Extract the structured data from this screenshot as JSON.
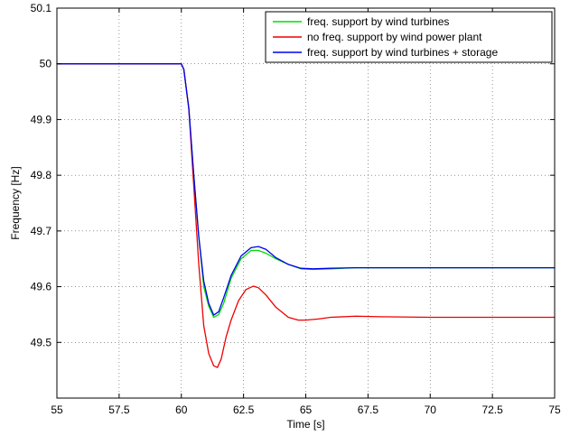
{
  "chart_data": {
    "type": "line",
    "title": "",
    "xlabel": "Time [s]",
    "ylabel": "Frequency [Hz]",
    "xlim": [
      55,
      75
    ],
    "ylim": [
      49.4,
      50.1
    ],
    "grid": true,
    "legend_position": "top-right",
    "x_ticks": [
      55,
      57.5,
      60,
      62.5,
      65,
      67.5,
      70,
      72.5,
      75
    ],
    "x_tick_labels": [
      "55",
      "57.5",
      "60",
      "62.5",
      "65",
      "67.5",
      "70",
      "72.5",
      "75"
    ],
    "y_ticks": [
      49.5,
      49.6,
      49.7,
      49.8,
      49.9,
      50,
      50.1
    ],
    "y_tick_labels": [
      "49.5",
      "49.6",
      "49.7",
      "49.8",
      "49.9",
      "50",
      "50.1"
    ],
    "series": [
      {
        "name": "freq. support by wind turbines",
        "color": "#00dd00",
        "x": [
          55,
          60,
          60.1,
          60.3,
          60.5,
          60.7,
          60.9,
          61.1,
          61.3,
          61.5,
          61.7,
          62.0,
          62.4,
          62.8,
          63.1,
          63.4,
          63.8,
          64.3,
          64.8,
          65.3,
          66,
          67,
          68,
          70,
          72.5,
          75
        ],
        "y": [
          50.0,
          50.0,
          49.99,
          49.92,
          49.8,
          49.69,
          49.6,
          49.565,
          49.545,
          49.55,
          49.57,
          49.615,
          49.65,
          49.665,
          49.665,
          49.66,
          49.65,
          49.64,
          49.632,
          49.631,
          49.632,
          49.634,
          49.634,
          49.634,
          49.634,
          49.634
        ]
      },
      {
        "name": "no freq. support by wind power plant",
        "color": "#ee0000",
        "x": [
          55,
          60,
          60.1,
          60.3,
          60.5,
          60.7,
          60.9,
          61.1,
          61.3,
          61.45,
          61.6,
          61.8,
          62.0,
          62.3,
          62.6,
          62.9,
          63.1,
          63.4,
          63.8,
          64.3,
          64.7,
          65.0,
          65.5,
          66,
          67,
          68,
          70,
          72.5,
          75
        ],
        "y": [
          50.0,
          50.0,
          49.99,
          49.92,
          49.78,
          49.64,
          49.53,
          49.48,
          49.458,
          49.455,
          49.47,
          49.51,
          49.54,
          49.575,
          49.595,
          49.601,
          49.598,
          49.585,
          49.563,
          49.545,
          49.54,
          49.54,
          49.542,
          49.545,
          49.547,
          49.546,
          49.545,
          49.545,
          49.545
        ]
      },
      {
        "name": "freq. support by wind turbines + storage",
        "color": "#0000ee",
        "x": [
          55,
          60,
          60.1,
          60.3,
          60.5,
          60.7,
          60.9,
          61.1,
          61.3,
          61.5,
          61.7,
          62.0,
          62.4,
          62.8,
          63.1,
          63.4,
          63.8,
          64.3,
          64.8,
          65.3,
          66,
          67,
          68,
          70,
          72.5,
          75
        ],
        "y": [
          50.0,
          50.0,
          49.99,
          49.92,
          49.8,
          49.69,
          49.61,
          49.57,
          49.549,
          49.555,
          49.58,
          49.62,
          49.655,
          49.67,
          49.672,
          49.667,
          49.652,
          49.64,
          49.633,
          49.632,
          49.633,
          49.634,
          49.634,
          49.634,
          49.634,
          49.634
        ]
      }
    ]
  }
}
